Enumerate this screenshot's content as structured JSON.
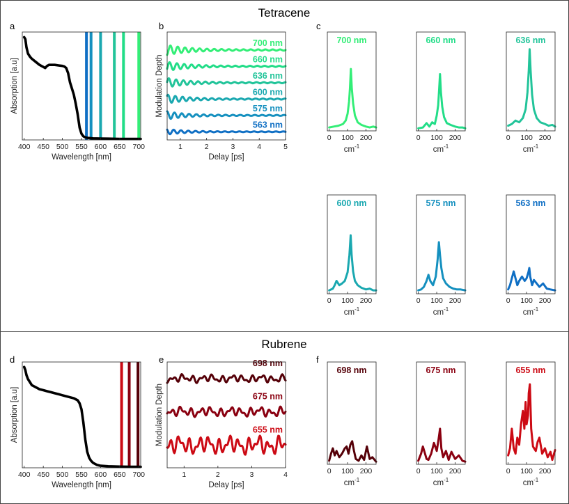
{
  "sections": {
    "tetracene": {
      "title": "Tetracene"
    },
    "rubrene": {
      "title": "Rubrene"
    }
  },
  "colors": {
    "black": "#000000",
    "t700": "#33ee77",
    "t660": "#22dd88",
    "t636": "#22c49a",
    "t600": "#1aa8b0",
    "t575": "#1590bf",
    "t563": "#0f6fc4",
    "r698": "#550008",
    "r675": "#8a0010",
    "r655": "#cc0a14"
  },
  "chart_data": [
    {
      "id": "a",
      "panel_label": "a",
      "type": "line",
      "title": "",
      "xlabel": "Wavelength [nm]",
      "ylabel": "Absorption [a.u]",
      "xlim": [
        395,
        705
      ],
      "ylim": [
        0,
        1.05
      ],
      "xticks": [
        400,
        450,
        500,
        550,
        600,
        650,
        700
      ],
      "series": [
        {
          "name": "absorption",
          "color": "#000000",
          "x": [
            400,
            403,
            406,
            410,
            415,
            420,
            430,
            440,
            450,
            455,
            460,
            465,
            470,
            480,
            490,
            500,
            505,
            510,
            515,
            520,
            525,
            530,
            535,
            540,
            545,
            550,
            555,
            560,
            565,
            570,
            580,
            600,
            620,
            650,
            680,
            705
          ],
          "y": [
            1.0,
            0.98,
            0.9,
            0.84,
            0.81,
            0.79,
            0.76,
            0.73,
            0.71,
            0.7,
            0.72,
            0.73,
            0.73,
            0.73,
            0.725,
            0.72,
            0.715,
            0.7,
            0.65,
            0.56,
            0.5,
            0.44,
            0.35,
            0.25,
            0.12,
            0.06,
            0.035,
            0.025,
            0.02,
            0.018,
            0.015,
            0.013,
            0.012,
            0.01,
            0.01,
            0.01
          ]
        }
      ],
      "vlines": [
        {
          "x": 563,
          "color": "#0f6fc4"
        },
        {
          "x": 575,
          "color": "#1590bf"
        },
        {
          "x": 600,
          "color": "#1aa8b0"
        },
        {
          "x": 636,
          "color": "#22c49a"
        },
        {
          "x": 660,
          "color": "#22dd88"
        },
        {
          "x": 700,
          "color": "#33ee77"
        }
      ]
    },
    {
      "id": "b",
      "panel_label": "b",
      "type": "line",
      "title": "",
      "xlabel": "Delay [ps]",
      "ylabel": "Modulation Depth",
      "xlim": [
        0.5,
        5
      ],
      "ylim": [
        0,
        6.6
      ],
      "xticks": [
        1,
        2,
        3,
        4,
        5
      ],
      "series": [
        {
          "name": "700 nm",
          "color": "#33ee77",
          "offset": 5.5,
          "amp": 0.28,
          "freq": 3.6,
          "decay": 0.8
        },
        {
          "name": "660 nm",
          "color": "#22dd88",
          "offset": 4.5,
          "amp": 0.25,
          "freq": 3.6,
          "decay": 0.8
        },
        {
          "name": "636 nm",
          "color": "#22c49a",
          "offset": 3.5,
          "amp": 0.26,
          "freq": 3.6,
          "decay": 0.75
        },
        {
          "name": "600 nm",
          "color": "#1aa8b0",
          "offset": 2.5,
          "amp": 0.24,
          "freq": 3.6,
          "decay": 0.75
        },
        {
          "name": "575 nm",
          "color": "#1590bf",
          "offset": 1.5,
          "amp": 0.22,
          "freq": 3.6,
          "decay": 0.7
        },
        {
          "name": "563 nm",
          "color": "#0f6fc4",
          "offset": 0.5,
          "amp": 0.15,
          "freq": 3.6,
          "decay": 0.7
        }
      ]
    },
    {
      "id": "c",
      "panel_label": "c",
      "type": "line",
      "xlabel": "cm",
      "xlabel_sup": "-1",
      "xlim": [
        -10,
        255
      ],
      "ylim": [
        0,
        1.15
      ],
      "xticks": [
        0,
        100,
        200
      ],
      "panels": [
        {
          "title": "700 nm",
          "color": "#33ee77",
          "peak": 0.58,
          "x": [
            0,
            25,
            50,
            75,
            90,
            100,
            108,
            113,
            118,
            123,
            130,
            140,
            155,
            175,
            200,
            220,
            240,
            255
          ],
          "y": [
            0.04,
            0.05,
            0.06,
            0.08,
            0.12,
            0.2,
            0.34,
            0.5,
            0.72,
            0.5,
            0.32,
            0.18,
            0.1,
            0.07,
            0.05,
            0.04,
            0.05,
            0.04
          ]
        },
        {
          "title": "660 nm",
          "color": "#22dd88",
          "peak": 0.55,
          "x": [
            0,
            25,
            45,
            60,
            75,
            90,
            100,
            108,
            113,
            118,
            123,
            130,
            140,
            155,
            175,
            200,
            220,
            240,
            255
          ],
          "y": [
            0.03,
            0.04,
            0.09,
            0.05,
            0.1,
            0.08,
            0.18,
            0.3,
            0.48,
            0.66,
            0.45,
            0.28,
            0.16,
            0.09,
            0.07,
            0.05,
            0.04,
            0.04,
            0.03
          ]
        },
        {
          "title": "636 nm",
          "color": "#22c49a",
          "peak": 0.83,
          "x": [
            0,
            20,
            40,
            60,
            80,
            95,
            105,
            112,
            117,
            122,
            130,
            140,
            155,
            175,
            200,
            220,
            240,
            255
          ],
          "y": [
            0.06,
            0.08,
            0.12,
            0.1,
            0.15,
            0.25,
            0.45,
            0.7,
            0.95,
            0.7,
            0.42,
            0.25,
            0.15,
            0.1,
            0.08,
            0.06,
            0.07,
            0.05
          ]
        },
        {
          "title": "600 nm",
          "color": "#1aa8b0",
          "peak": 0.55,
          "x": [
            0,
            20,
            30,
            40,
            55,
            70,
            85,
            100,
            110,
            117,
            122,
            130,
            140,
            155,
            175,
            200,
            220,
            240,
            255
          ],
          "y": [
            0.04,
            0.06,
            0.1,
            0.15,
            0.1,
            0.12,
            0.15,
            0.25,
            0.45,
            0.68,
            0.45,
            0.26,
            0.15,
            0.1,
            0.07,
            0.05,
            0.06,
            0.04,
            0.04
          ]
        },
        {
          "title": "575 nm",
          "color": "#1590bf",
          "peak": 0.54,
          "x": [
            0,
            15,
            30,
            45,
            55,
            65,
            80,
            95,
            105,
            112,
            118,
            125,
            135,
            150,
            170,
            190,
            210,
            230,
            255
          ],
          "y": [
            0.04,
            0.05,
            0.08,
            0.15,
            0.22,
            0.15,
            0.1,
            0.2,
            0.4,
            0.6,
            0.45,
            0.3,
            0.18,
            0.12,
            0.08,
            0.06,
            0.05,
            0.05,
            0.04
          ]
        },
        {
          "title": "563 nm",
          "color": "#0f6fc4",
          "peak": 0.25,
          "x": [
            0,
            10,
            20,
            30,
            40,
            50,
            60,
            75,
            90,
            100,
            110,
            115,
            120,
            130,
            140,
            155,
            170,
            190,
            210,
            230,
            255
          ],
          "y": [
            0.05,
            0.1,
            0.18,
            0.26,
            0.18,
            0.1,
            0.15,
            0.2,
            0.15,
            0.18,
            0.25,
            0.3,
            0.2,
            0.1,
            0.16,
            0.12,
            0.08,
            0.12,
            0.06,
            0.05,
            0.04
          ]
        }
      ]
    },
    {
      "id": "d",
      "panel_label": "d",
      "type": "line",
      "title": "",
      "xlabel": "Wavelength [nm]",
      "ylabel": "Absorption [a.u]",
      "xlim": [
        395,
        705
      ],
      "ylim": [
        0,
        1.05
      ],
      "xticks": [
        400,
        450,
        500,
        550,
        600,
        650,
        700
      ],
      "series": [
        {
          "name": "absorption",
          "color": "#000000",
          "x": [
            400,
            403,
            406,
            410,
            415,
            420,
            430,
            440,
            450,
            460,
            470,
            480,
            490,
            500,
            510,
            520,
            530,
            540,
            545,
            550,
            555,
            560,
            565,
            570,
            575,
            580,
            590,
            600,
            620,
            650,
            680,
            705
          ],
          "y": [
            1.0,
            0.97,
            0.92,
            0.88,
            0.85,
            0.82,
            0.8,
            0.78,
            0.77,
            0.76,
            0.75,
            0.74,
            0.73,
            0.72,
            0.71,
            0.7,
            0.69,
            0.67,
            0.64,
            0.58,
            0.45,
            0.28,
            0.16,
            0.1,
            0.07,
            0.05,
            0.03,
            0.02,
            0.015,
            0.012,
            0.01,
            0.01
          ]
        }
      ],
      "vlines": [
        {
          "x": 655,
          "color": "#cc0a14"
        },
        {
          "x": 675,
          "color": "#8a0010"
        },
        {
          "x": 698,
          "color": "#550008"
        }
      ]
    },
    {
      "id": "e",
      "panel_label": "e",
      "type": "line",
      "title": "",
      "xlabel": "Delay [ps]",
      "ylabel": "Modulation Depth",
      "xlim": [
        0.5,
        4
      ],
      "ylim": [
        0,
        3.5
      ],
      "xticks": [
        1,
        2,
        3,
        4
      ],
      "series": [
        {
          "name": "698 nm",
          "color": "#550008",
          "offset": 2.95,
          "amp": 0.12
        },
        {
          "name": "675 nm",
          "color": "#8a0010",
          "offset": 1.85,
          "amp": 0.15
        },
        {
          "name": "655 nm",
          "color": "#cc0a14",
          "offset": 0.75,
          "amp": 0.28
        }
      ]
    },
    {
      "id": "f",
      "panel_label": "f",
      "type": "line",
      "xlabel": "cm",
      "xlabel_sup": "-1",
      "xlim": [
        -10,
        255
      ],
      "ylim": [
        0,
        1.15
      ],
      "xticks": [
        0,
        100,
        200
      ],
      "panels": [
        {
          "title": "698 nm",
          "color": "#550008",
          "x": [
            0,
            10,
            20,
            30,
            40,
            55,
            70,
            85,
            95,
            105,
            115,
            125,
            135,
            145,
            160,
            175,
            190,
            205,
            220,
            235,
            255
          ],
          "y": [
            0.04,
            0.12,
            0.18,
            0.1,
            0.15,
            0.08,
            0.12,
            0.18,
            0.2,
            0.12,
            0.22,
            0.26,
            0.15,
            0.06,
            0.04,
            0.1,
            0.05,
            0.2,
            0.06,
            0.08,
            0.03
          ]
        },
        {
          "title": "675 nm",
          "color": "#8a0010",
          "x": [
            0,
            15,
            25,
            35,
            45,
            55,
            70,
            85,
            100,
            110,
            118,
            125,
            135,
            150,
            165,
            180,
            200,
            220,
            240,
            255
          ],
          "y": [
            0.04,
            0.12,
            0.2,
            0.13,
            0.06,
            0.05,
            0.12,
            0.24,
            0.15,
            0.28,
            0.4,
            0.18,
            0.08,
            0.15,
            0.05,
            0.14,
            0.06,
            0.1,
            0.04,
            0.03
          ]
        },
        {
          "title": "655 nm",
          "color": "#cc0a14",
          "x": [
            0,
            10,
            20,
            30,
            40,
            50,
            60,
            70,
            80,
            88,
            95,
            100,
            108,
            112,
            118,
            125,
            135,
            150,
            160,
            170,
            185,
            200,
            215,
            230,
            240,
            255
          ],
          "y": [
            0.1,
            0.18,
            0.4,
            0.18,
            0.12,
            0.3,
            0.22,
            0.45,
            0.6,
            0.4,
            0.7,
            0.45,
            0.55,
            0.8,
            0.9,
            0.4,
            0.2,
            0.15,
            0.25,
            0.3,
            0.12,
            0.18,
            0.08,
            0.14,
            0.05,
            0.16
          ]
        }
      ]
    }
  ]
}
